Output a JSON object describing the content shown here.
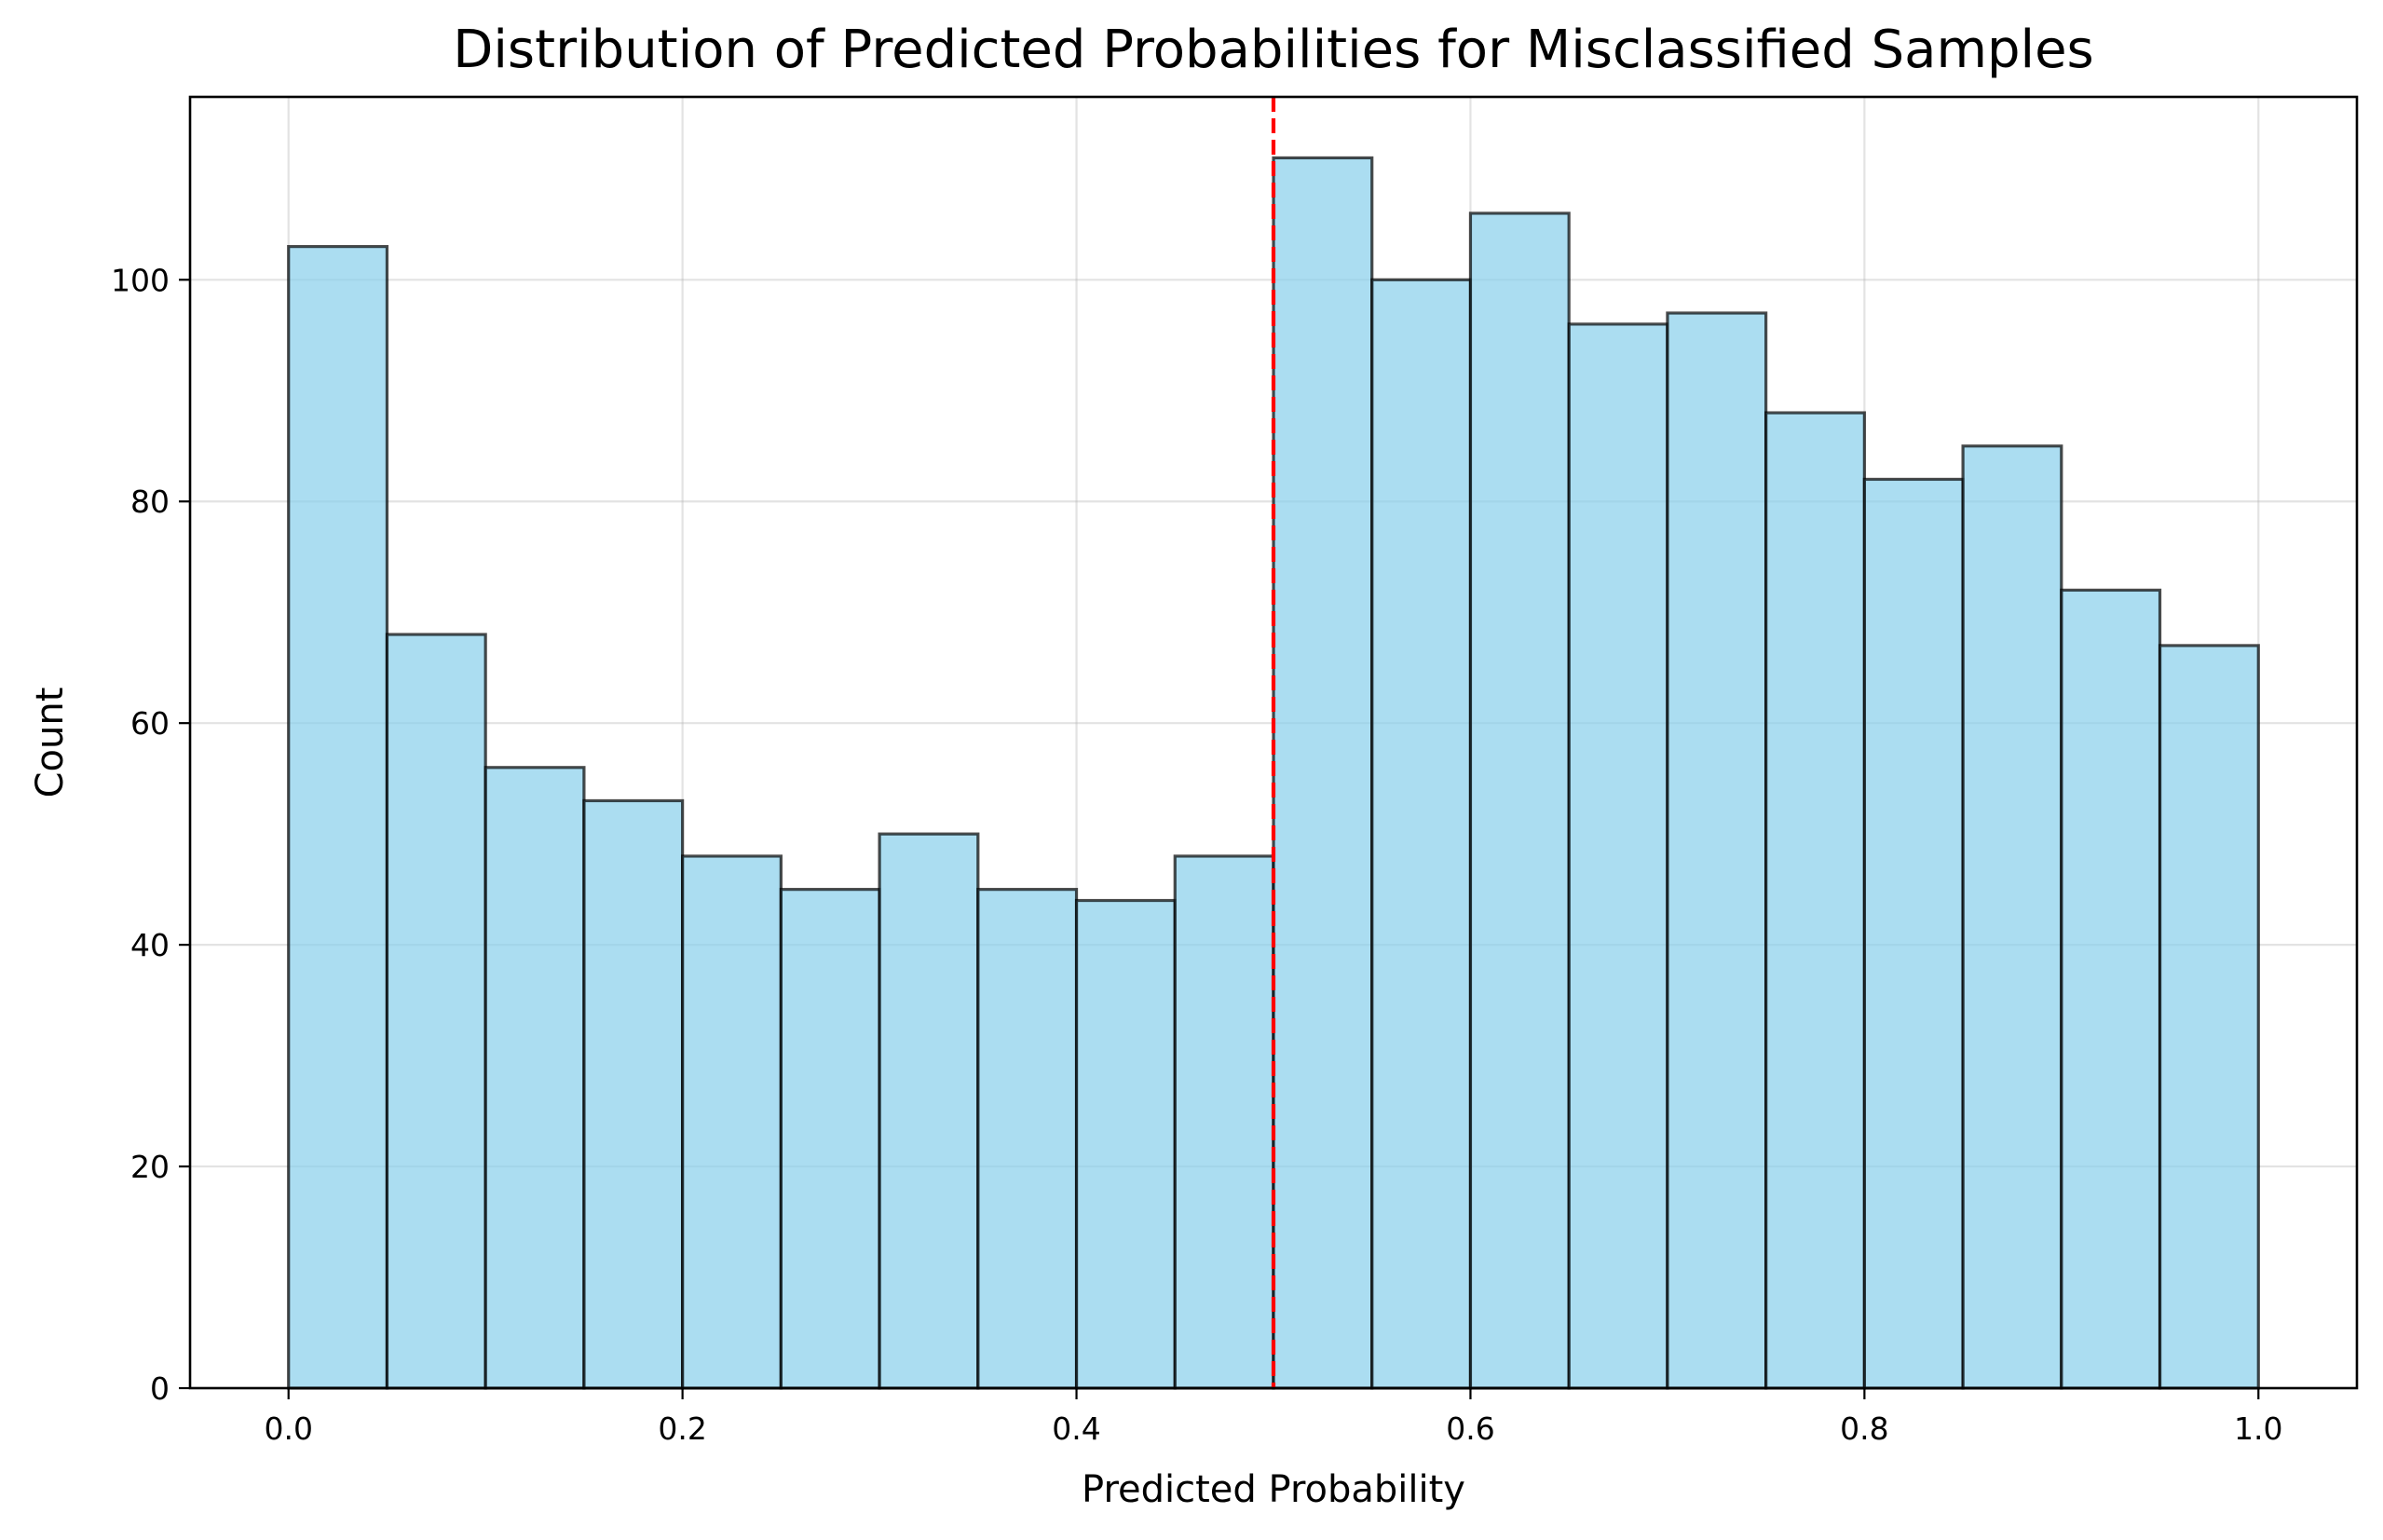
{
  "chart_data": {
    "type": "bar",
    "subtype": "histogram",
    "title": "Distribution of Predicted Probabilities for Misclassified Samples",
    "xlabel": "Predicted Probability",
    "ylabel": "Count",
    "xlim": [
      -0.05,
      1.05
    ],
    "ylim": [
      0,
      116.5
    ],
    "bin_edges": [
      0.0,
      0.05,
      0.1,
      0.15,
      0.2,
      0.25,
      0.3,
      0.35,
      0.4,
      0.45,
      0.5,
      0.55,
      0.6,
      0.65,
      0.7,
      0.75,
      0.8,
      0.85,
      0.9,
      0.95,
      1.0
    ],
    "values": [
      103,
      68,
      56,
      53,
      48,
      45,
      50,
      45,
      44,
      48,
      111,
      100,
      106,
      96,
      97,
      88,
      82,
      85,
      72,
      67
    ],
    "x_ticks": [
      {
        "value": 0.0,
        "label": "0.0"
      },
      {
        "value": 0.2,
        "label": "0.2"
      },
      {
        "value": 0.4,
        "label": "0.4"
      },
      {
        "value": 0.6,
        "label": "0.6"
      },
      {
        "value": 0.8,
        "label": "0.8"
      },
      {
        "value": 1.0,
        "label": "1.0"
      }
    ],
    "y_ticks": [
      {
        "value": 0,
        "label": "0"
      },
      {
        "value": 20,
        "label": "20"
      },
      {
        "value": 40,
        "label": "40"
      },
      {
        "value": 60,
        "label": "60"
      },
      {
        "value": 80,
        "label": "80"
      },
      {
        "value": 100,
        "label": "100"
      }
    ],
    "threshold": {
      "value": 0.5,
      "style": "dashed",
      "color": "#ff0000"
    },
    "grid": true,
    "legend": "none",
    "colors": {
      "bar_fill": "#87ceeb",
      "bar_fill_opacity": 0.7,
      "bar_edge": "#000000"
    }
  }
}
